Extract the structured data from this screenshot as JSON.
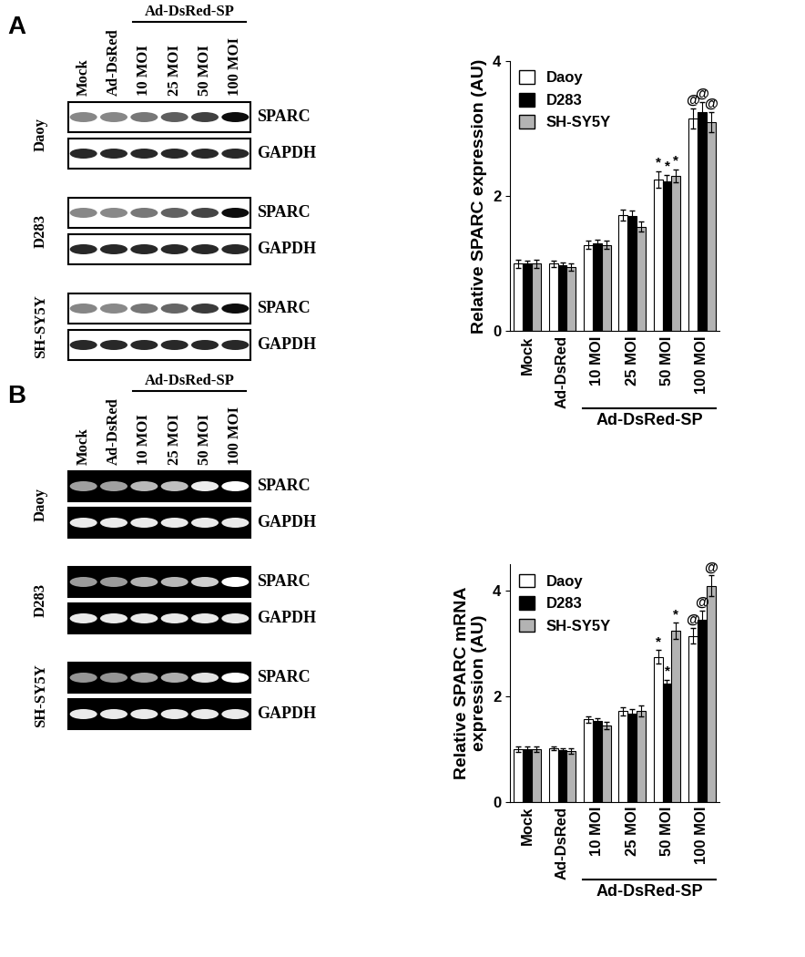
{
  "chart_data": [
    {
      "type": "bar",
      "y_label": "Relative SPARC expression (AU)",
      "categories": [
        "Mock",
        "Ad-DsRed",
        "10 MOI",
        "25 MOI",
        "50 MOI",
        "100 MOI"
      ],
      "ylim": [
        0,
        4
      ],
      "yticks": [
        0,
        2,
        4
      ],
      "legend": "upper left",
      "annotations": [
        {
          "text": "Ad-DsRed-SP",
          "from": "10 MOI",
          "to": "100 MOI"
        }
      ],
      "series": [
        {
          "name": "Daoy",
          "color": "#ffffff",
          "values": [
            1.0,
            1.0,
            1.28,
            1.72,
            2.25,
            3.15
          ],
          "errors": [
            0.06,
            0.05,
            0.06,
            0.08,
            0.12,
            0.15
          ],
          "significance": [
            null,
            null,
            null,
            null,
            "*",
            "@"
          ]
        },
        {
          "name": "D283",
          "color": "#000000",
          "values": [
            1.0,
            0.98,
            1.3,
            1.7,
            2.22,
            3.25
          ],
          "errors": [
            0.05,
            0.04,
            0.05,
            0.09,
            0.1,
            0.15
          ],
          "significance": [
            null,
            null,
            null,
            null,
            "*",
            "@"
          ]
        },
        {
          "name": "SH-SY5Y",
          "color": "#b3b3b3",
          "values": [
            1.0,
            0.95,
            1.28,
            1.55,
            2.3,
            3.1
          ],
          "errors": [
            0.06,
            0.05,
            0.06,
            0.08,
            0.1,
            0.15
          ],
          "significance": [
            null,
            null,
            null,
            null,
            "*",
            "@"
          ]
        }
      ]
    },
    {
      "type": "bar",
      "y_label": "Relative SPARC mRNA\nexpression (AU)",
      "categories": [
        "Mock",
        "Ad-DsRed",
        "10 MOI",
        "25 MOI",
        "50 MOI",
        "100 MOI"
      ],
      "ylim": [
        0,
        4.5
      ],
      "yticks": [
        0,
        2,
        4
      ],
      "legend": "upper left",
      "annotations": [
        {
          "text": "Ad-DsRed-SP",
          "from": "10 MOI",
          "to": "100 MOI"
        }
      ],
      "series": [
        {
          "name": "Daoy",
          "color": "#ffffff",
          "values": [
            1.0,
            1.02,
            1.57,
            1.72,
            2.75,
            3.15
          ],
          "errors": [
            0.05,
            0.04,
            0.06,
            0.08,
            0.13,
            0.15
          ],
          "significance": [
            null,
            null,
            null,
            null,
            "*",
            "@"
          ]
        },
        {
          "name": "D283",
          "color": "#000000",
          "values": [
            1.0,
            0.98,
            1.53,
            1.68,
            2.25,
            3.45
          ],
          "errors": [
            0.05,
            0.04,
            0.05,
            0.08,
            0.07,
            0.18
          ],
          "significance": [
            null,
            null,
            null,
            null,
            "*",
            "@"
          ]
        },
        {
          "name": "SH-SY5Y",
          "color": "#b3b3b3",
          "values": [
            1.0,
            0.96,
            1.45,
            1.73,
            3.25,
            4.1
          ],
          "errors": [
            0.05,
            0.05,
            0.07,
            0.1,
            0.15,
            0.2
          ],
          "significance": [
            null,
            null,
            null,
            null,
            "*",
            "@"
          ]
        }
      ]
    }
  ],
  "blots": [
    {
      "panel": "A",
      "group_label": "Ad-DsRed-SP",
      "lanes": [
        "Mock",
        "Ad-DsRed",
        "10 MOI",
        "25 MOI",
        "50 MOI",
        "100 MOI"
      ],
      "cell_lines": [
        "Daoy",
        "D283",
        "SH-SY5Y"
      ],
      "bands": [
        "SPARC",
        "GAPDH"
      ]
    },
    {
      "panel": "B",
      "group_label": "Ad-DsRed-SP",
      "lanes": [
        "Mock",
        "Ad-DsRed",
        "10 MOI",
        "25 MOI",
        "50 MOI",
        "100 MOI"
      ],
      "cell_lines": [
        "Daoy",
        "D283",
        "SH-SY5Y"
      ],
      "bands": [
        "SPARC",
        "GAPDH"
      ]
    }
  ]
}
